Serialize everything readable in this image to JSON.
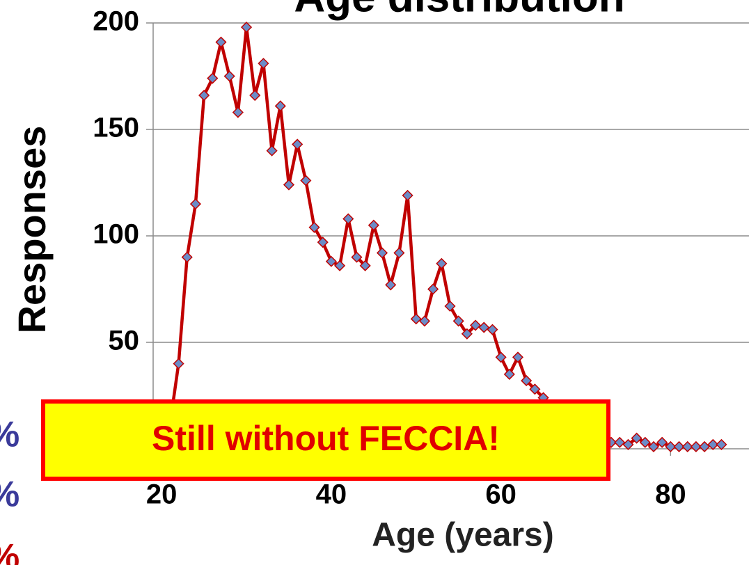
{
  "chart_data": {
    "type": "line",
    "title": "Age distribution",
    "x_label": "Age (years)",
    "y_label": "Responses",
    "annotation": "Still without FECCIA!",
    "side_text": [
      "%",
      "%",
      "%"
    ],
    "x": [
      21,
      22,
      23,
      24,
      25,
      26,
      27,
      28,
      29,
      30,
      31,
      32,
      33,
      34,
      35,
      36,
      37,
      38,
      39,
      40,
      41,
      42,
      43,
      44,
      45,
      46,
      47,
      48,
      49,
      50,
      51,
      52,
      53,
      54,
      55,
      56,
      57,
      58,
      59,
      60,
      61,
      62,
      63,
      64,
      65,
      66,
      67,
      68,
      69,
      70,
      71,
      72,
      73,
      74,
      75,
      76,
      77,
      78,
      79,
      80,
      81,
      82,
      83,
      84,
      85,
      86
    ],
    "series": [
      {
        "name": "Responses",
        "color": "#c00000",
        "marker_color": "#6b8cc7",
        "values": [
          12,
          40,
          90,
          115,
          166,
          174,
          191,
          175,
          158,
          198,
          166,
          181,
          140,
          161,
          124,
          143,
          126,
          104,
          97,
          88,
          86,
          108,
          90,
          86,
          105,
          92,
          77,
          92,
          119,
          61,
          60,
          75,
          87,
          67,
          60,
          54,
          58,
          57,
          56,
          43,
          35,
          43,
          32,
          28,
          24,
          20,
          17,
          14,
          12,
          10,
          6,
          8,
          3,
          3,
          2,
          5,
          3,
          1,
          3,
          1,
          1,
          1,
          1,
          1,
          2,
          2
        ]
      }
    ],
    "xlim": [
      19,
      89
    ],
    "ylim": [
      0,
      200
    ],
    "xticks": [
      20,
      40,
      60,
      80
    ],
    "yticks": [
      0,
      50,
      100,
      150,
      200
    ],
    "grid": true
  }
}
